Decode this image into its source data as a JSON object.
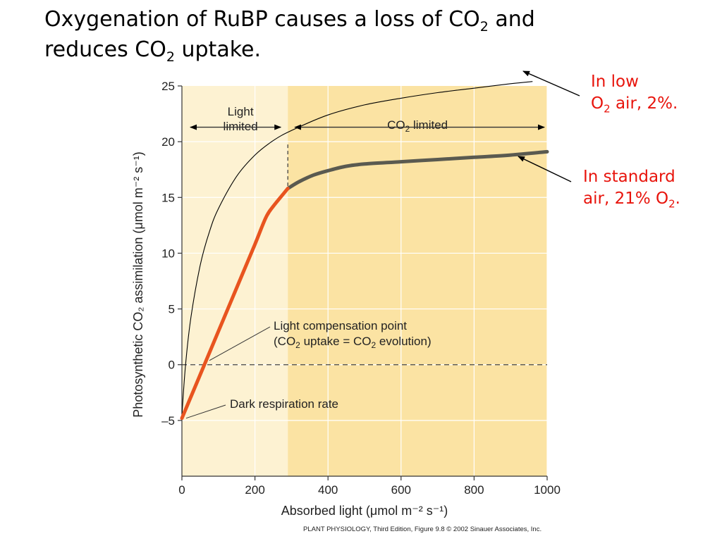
{
  "title": {
    "line1_pre": "Oxygenation of RuBP causes a loss of CO",
    "line1_sub": "2",
    "line1_post": " and",
    "line2_pre": "reduces CO",
    "line2_sub": "2",
    "line2_post": " uptake."
  },
  "annotations": {
    "low_o2": {
      "line1": "In low",
      "line2_pre": "O",
      "line2_sub": "2",
      "line2_post": " air, 2%."
    },
    "standard_air": {
      "line1": "In standard",
      "line2_pre": "air, 21% O",
      "line2_sub": "2",
      "line2_post": "."
    }
  },
  "credit": "PLANT PHYSIOLOGY, Third Edition, Figure 9.8  © 2002 Sinauer Associates, Inc.",
  "colors": {
    "light_limited_bg": "#fdf2d2",
    "co2_limited_bg": "#fbe3a3",
    "light_limited_line": "#e8541f",
    "co2_limited_line": "#5a5a50",
    "low_o2_line": "#000000",
    "annotation_red": "#e8140c"
  },
  "chart_data": {
    "type": "line",
    "xlabel": "Absorbed light (μmol m⁻² s⁻¹)",
    "ylabel": "Photosynthetic CO₂ assimilation (μmol m⁻² s⁻¹)",
    "xlim": [
      0,
      1000
    ],
    "ylim": [
      -10,
      25
    ],
    "x_ticks": [
      0,
      200,
      400,
      600,
      800,
      1000
    ],
    "y_ticks": [
      -5,
      0,
      5,
      10,
      15,
      20,
      25
    ],
    "x_tick_labels": [
      "0",
      "200",
      "400",
      "600",
      "800",
      "1000"
    ],
    "y_tick_labels": [
      "–5",
      "0",
      "5",
      "10",
      "15",
      "20",
      "25"
    ],
    "grid": true,
    "regions": [
      {
        "label_line1": "Light",
        "label_line2": "limited",
        "x_from": 0,
        "x_to": 290
      },
      {
        "label_pre": "CO",
        "label_sub": "2",
        "label_post": " limited",
        "x_from": 290,
        "x_to": 1000
      }
    ],
    "boundary_x": 290,
    "series": [
      {
        "segment": "light-limited",
        "x": [
          0,
          50,
          100,
          150,
          200,
          230,
          250,
          290
        ],
        "y": [
          -4.8,
          -0.9,
          3.0,
          6.9,
          10.8,
          13.2,
          14.2,
          15.8
        ]
      },
      {
        "segment": "co2-limited",
        "x": [
          290,
          320,
          360,
          400,
          450,
          500,
          600,
          700,
          800,
          900,
          1000
        ],
        "y": [
          15.8,
          16.4,
          17.0,
          17.4,
          17.8,
          18.0,
          18.2,
          18.4,
          18.6,
          18.8,
          19.1
        ]
      },
      {
        "segment": "low-o2",
        "x": [
          0,
          10,
          25,
          50,
          75,
          100,
          150,
          200,
          250,
          300,
          400,
          500,
          600,
          700,
          800,
          900,
          960
        ],
        "y": [
          -4.5,
          0.0,
          4.3,
          8.9,
          11.9,
          14.0,
          16.9,
          18.8,
          20.1,
          21.0,
          22.4,
          23.3,
          23.9,
          24.4,
          24.8,
          25.2,
          25.4
        ]
      }
    ],
    "zero_line": 0,
    "annotations": [
      {
        "line1": "Light compensation point",
        "line2_pre": "(CO",
        "line2_sub": "2",
        "line2_mid": " uptake = CO",
        "line2_sub2": "2",
        "line2_post": " evolution)",
        "points_to": [
          60,
          0
        ]
      },
      {
        "text": "Dark respiration rate",
        "points_to": [
          0,
          -4.8
        ]
      }
    ]
  }
}
